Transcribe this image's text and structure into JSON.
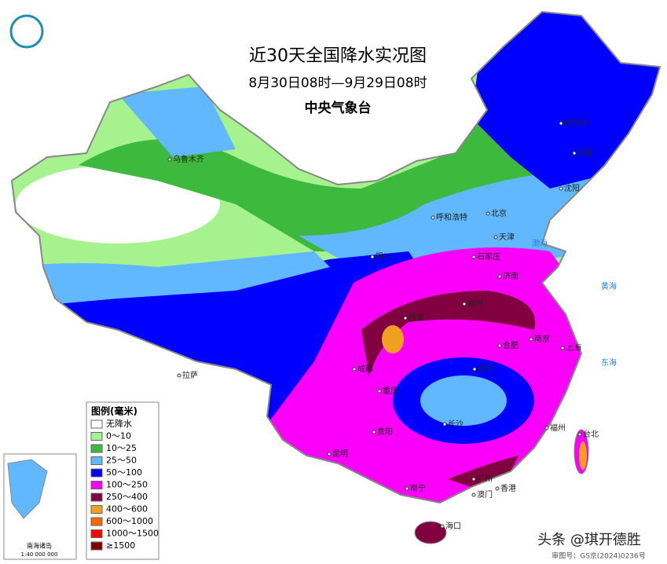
{
  "header": {
    "title": "近30天全国降水实况图",
    "period": "8月30日08时—9月29日08时",
    "agency": "中央气象台"
  },
  "legend": {
    "title": "图例(毫米)",
    "items": [
      {
        "label": "无降水",
        "color": "#ffffff"
      },
      {
        "label": "0～10",
        "color": "#a6f28f"
      },
      {
        "label": "10～25",
        "color": "#3dba3d"
      },
      {
        "label": "25～50",
        "color": "#61b8ff"
      },
      {
        "label": "50～100",
        "color": "#0000fe"
      },
      {
        "label": "100～250",
        "color": "#fa00fa"
      },
      {
        "label": "250～400",
        "color": "#800040"
      },
      {
        "label": "400～600",
        "color": "#f0a020"
      },
      {
        "label": "600～1000",
        "color": "#ff6600"
      },
      {
        "label": "1000～1500",
        "color": "#ff0000"
      },
      {
        "label": "≥1500",
        "color": "#800000"
      }
    ]
  },
  "cities": [
    "乌鲁木齐",
    "哈尔滨",
    "长春",
    "沈阳",
    "北京",
    "天津",
    "石家庄",
    "呼和浩特",
    "银川",
    "济南",
    "西安",
    "郑州",
    "合肥",
    "南京",
    "上海",
    "武汉",
    "成都",
    "重庆",
    "拉萨",
    "贵阳",
    "长沙",
    "福州",
    "台北",
    "广州",
    "香港",
    "澳门",
    "南宁",
    "海口",
    "昆明"
  ],
  "seas": [
    "渤海",
    "黄海",
    "东海"
  ],
  "inset": {
    "title": "南海诸岛",
    "scale": "1:40 000 000"
  },
  "footer": {
    "watermark": "头条 @琪开德胜",
    "map_number": "审图号：GS京(2024)0236号"
  }
}
